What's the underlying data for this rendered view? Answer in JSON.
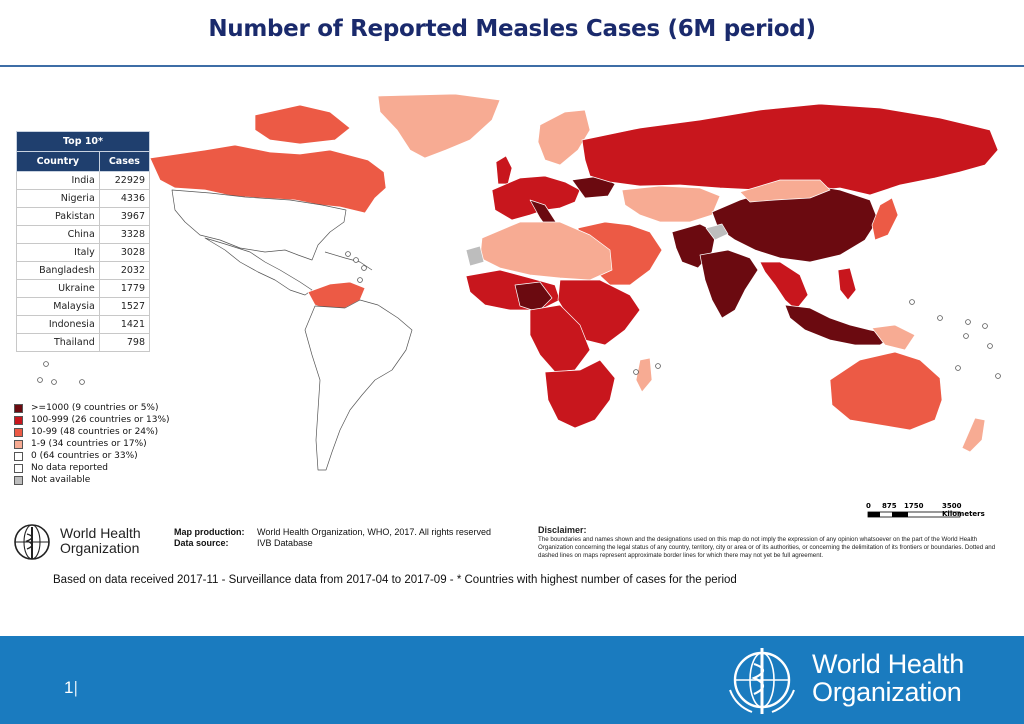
{
  "title": "Number of Reported Measles Cases (6M period)",
  "colors": {
    "class_1000_plus": "#6b0a10",
    "class_100_999": "#c8161d",
    "class_10_99": "#ec5a45",
    "class_1_9": "#f7ab93",
    "class_0": "#ffffff",
    "no_data": "#ffffff",
    "not_available": "#bdbdbd",
    "banner": "#1a7bbf",
    "title": "#1a2a6c"
  },
  "top10": {
    "heading": "Top 10*",
    "col_country": "Country",
    "col_cases": "Cases",
    "rows": [
      {
        "country": "India",
        "cases": "22929"
      },
      {
        "country": "Nigeria",
        "cases": "4336"
      },
      {
        "country": "Pakistan",
        "cases": "3967"
      },
      {
        "country": "China",
        "cases": "3328"
      },
      {
        "country": "Italy",
        "cases": "3028"
      },
      {
        "country": "Bangladesh",
        "cases": "2032"
      },
      {
        "country": "Ukraine",
        "cases": "1779"
      },
      {
        "country": "Malaysia",
        "cases": "1527"
      },
      {
        "country": "Indonesia",
        "cases": "1421"
      },
      {
        "country": "Thailand",
        "cases": "798"
      }
    ]
  },
  "legend": [
    {
      "label": ">=1000 (9 countries or 5%)",
      "color": "#6b0a10"
    },
    {
      "label": "100-999 (26 countries or 13%)",
      "color": "#c8161d"
    },
    {
      "label": "10-99 (48 countries or 24%)",
      "color": "#ec5a45"
    },
    {
      "label": "1-9 (34 countries or 17%)",
      "color": "#f7ab93"
    },
    {
      "label": "0 (64 countries or 33%)",
      "color": "#ffffff"
    },
    {
      "label": "No data reported",
      "color": "#ffffff"
    },
    {
      "label": "Not available",
      "color": "#bdbdbd"
    }
  ],
  "scale": {
    "ticks": [
      "0",
      "875",
      "1750",
      "3500 Kilometers"
    ]
  },
  "credits": {
    "org_line1": "World Health",
    "org_line2": "Organization",
    "map_production_label": "Map production:",
    "map_production_value": "World Health Organization, WHO, 2017. All rights reserved",
    "data_source_label": "Data source:",
    "data_source_value": "IVB Database",
    "disclaimer_label": "Disclaimer:",
    "disclaimer_text": "The boundaries and names shown and the designations used on this map do not imply the expression of any opinion whatsoever on the part of the World Health Organization concerning the legal status of any country, territory, city or area or of its authorities, or concerning the delimitation of its frontiers or boundaries. Dotted and dashed lines on maps represent approximate border lines for which there may not yet be full agreement."
  },
  "footnote": "Based on data received 2017-11 - Surveillance data from 2017-04 to 2017-09 - * Countries with highest number of cases for the period",
  "footer": {
    "page_number": "1",
    "who_line1": "World Health",
    "who_line2": "Organization"
  }
}
